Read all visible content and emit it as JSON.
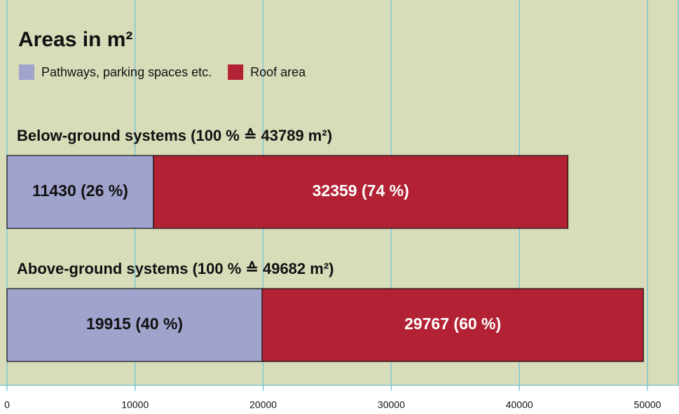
{
  "chart_data": {
    "type": "stacked-bar-horizontal",
    "title": "Areas in m²",
    "categories": [
      "Below-ground systems (100 % ≙ 43789 m²)",
      "Above-ground systems (100 % ≙ 49682 m²)"
    ],
    "series": [
      {
        "name": "Pathways, parking spaces etc.",
        "color": "#a0a3cc",
        "values": [
          11430,
          19915
        ],
        "value_labels": [
          "11430 (26 %)",
          "19915 (40 %)"
        ]
      },
      {
        "name": "Roof area",
        "color": "#b22234",
        "values": [
          32359,
          29767
        ],
        "value_labels": [
          "32359 (74 %)",
          "29767 (60 %)"
        ]
      }
    ],
    "xlim": [
      0,
      50000
    ],
    "xticks": [
      0,
      10000,
      20000,
      30000,
      40000,
      50000
    ],
    "grid": true,
    "legend": "top-left"
  }
}
